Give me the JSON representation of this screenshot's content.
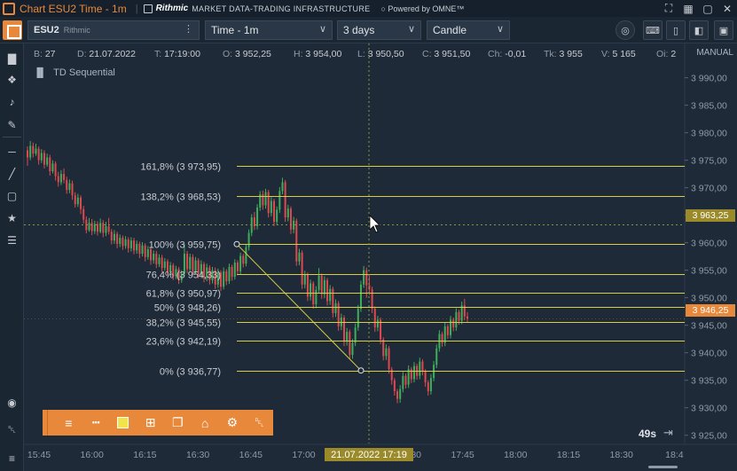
{
  "window": {
    "title": "Chart ESU2 Time - 1m",
    "brand": "Rithmic",
    "brand_sub": "MARKET DATA-TRADING INFRASTRUCTURE",
    "powered": "Powered by OMNE™",
    "icons": [
      "expand-icon",
      "grid-layout-icon",
      "maximize-icon",
      "close-icon"
    ]
  },
  "toolbar": {
    "symbol": "ESU2",
    "symbol_sub": "Rithmic",
    "timeframe": "Time - 1m",
    "range": "3 days",
    "chart_type": "Candle"
  },
  "info": {
    "b_label": "B:",
    "b_value": "27",
    "d_label": "D:",
    "d_value": "21.07.2022",
    "t_label": "T:",
    "t_value": "17:19:00",
    "o_label": "O:",
    "o_value": "3 952,25",
    "h_label": "H:",
    "h_value": "3 954,00",
    "l_label": "L:",
    "l_value": "3 950,50",
    "c_label": "C:",
    "c_value": "3 951,50",
    "ch_label": "Ch:",
    "ch_value": "-0,01",
    "tk_label": "Tk:",
    "tk_value": "3 955",
    "v_label": "V:",
    "v_value": "5 165",
    "oi_label": "Oi:",
    "oi_value": "2"
  },
  "indicator": "TD Sequential",
  "price_scale_mode": "MANUAL",
  "crosshair_time": "21.07.2022 17:19",
  "crosshair_price": "3 963,25",
  "last_price": "3 946,25",
  "countdown": "49s",
  "colors": {
    "up": "#3fae5a",
    "down": "#e0484f",
    "fib": "#d8cf46",
    "accent": "#e8883a",
    "last_price_tag": "#e8883a",
    "crosshair_tag": "#9a8a2a"
  },
  "chart_data": {
    "type": "candlestick",
    "x_ticks": [
      "15:45",
      "16:00",
      "16:15",
      "16:30",
      "16:45",
      "17:00",
      "17:15",
      "17:30",
      "17:45",
      "18:00",
      "18:15",
      "18:30",
      "18:4"
    ],
    "y_ticks": [
      "3 990,00",
      "3 985,00",
      "3 980,00",
      "3 975,00",
      "3 970,00",
      "3 965,00",
      "3 960,00",
      "3 955,00",
      "3 950,00",
      "3 945,00",
      "3 940,00",
      "3 935,00",
      "3 930,00",
      "3 925,00"
    ],
    "ylim": [
      3923.5,
      3993.0
    ],
    "fibonacci": [
      {
        "label": "161,8% (3 973,95)",
        "price": 3973.95
      },
      {
        "label": "138,2% (3 968,53)",
        "price": 3968.53
      },
      {
        "label": "100% (3 959,75)",
        "price": 3959.75
      },
      {
        "label": "76,4% (3 954,33)",
        "price": 3954.33
      },
      {
        "label": "61,8% (3 950,97)",
        "price": 3950.97
      },
      {
        "label": "50% (3 948,26)",
        "price": 3948.26
      },
      {
        "label": "38,2% (3 945,55)",
        "price": 3945.55
      },
      {
        "label": "23,6% (3 942,19)",
        "price": 3942.19
      },
      {
        "label": "0% (3 936,77)",
        "price": 3936.77
      }
    ],
    "candles": [
      [
        3976.8,
        3975.5,
        3977.5,
        3974.0
      ],
      [
        3975.5,
        3977.6,
        3978.5,
        3975.0
      ],
      [
        3977.6,
        3976.2,
        3978.2,
        3975.5
      ],
      [
        3976.2,
        3977.1,
        3978.0,
        3975.8
      ],
      [
        3977.1,
        3975.0,
        3977.5,
        3974.2
      ],
      [
        3975.0,
        3976.3,
        3977.0,
        3974.5
      ],
      [
        3976.3,
        3974.2,
        3976.8,
        3973.5
      ],
      [
        3974.2,
        3975.5,
        3976.2,
        3973.8
      ],
      [
        3975.5,
        3973.0,
        3976.0,
        3972.2
      ],
      [
        3973.0,
        3974.4,
        3975.0,
        3972.6
      ],
      [
        3974.4,
        3972.1,
        3974.8,
        3971.3
      ],
      [
        3972.1,
        3971.0,
        3972.9,
        3970.2
      ],
      [
        3971.0,
        3972.5,
        3973.2,
        3970.5
      ],
      [
        3972.5,
        3971.4,
        3973.5,
        3970.8
      ],
      [
        3971.4,
        3969.6,
        3972.0,
        3968.9
      ],
      [
        3969.6,
        3970.8,
        3971.5,
        3969.0
      ],
      [
        3970.8,
        3968.6,
        3971.3,
        3967.8
      ],
      [
        3968.6,
        3967.0,
        3969.2,
        3966.4
      ],
      [
        3967.0,
        3968.2,
        3968.9,
        3966.5
      ],
      [
        3968.2,
        3966.1,
        3968.6,
        3965.2
      ],
      [
        3966.1,
        3964.2,
        3966.7,
        3963.5
      ],
      [
        3964.2,
        3962.3,
        3964.8,
        3961.7
      ],
      [
        3962.3,
        3963.6,
        3964.5,
        3962.0
      ],
      [
        3963.6,
        3962.1,
        3964.3,
        3961.4
      ],
      [
        3962.1,
        3963.4,
        3964.0,
        3961.6
      ],
      [
        3963.4,
        3962.0,
        3963.9,
        3961.3
      ],
      [
        3962.0,
        3963.6,
        3964.4,
        3961.7
      ],
      [
        3963.6,
        3961.8,
        3964.1,
        3961.0
      ],
      [
        3961.8,
        3963.0,
        3963.8,
        3961.2
      ],
      [
        3963.0,
        3962.0,
        3964.5,
        3961.5
      ],
      [
        3962.0,
        3960.4,
        3962.5,
        3959.7
      ],
      [
        3960.4,
        3961.6,
        3962.3,
        3959.8
      ],
      [
        3961.6,
        3959.8,
        3962.0,
        3959.0
      ],
      [
        3959.8,
        3960.9,
        3961.5,
        3959.2
      ],
      [
        3960.9,
        3959.4,
        3961.3,
        3958.7
      ],
      [
        3959.4,
        3960.6,
        3961.2,
        3958.9
      ],
      [
        3960.6,
        3959.0,
        3961.0,
        3958.2
      ],
      [
        3959.0,
        3960.4,
        3961.0,
        3958.4
      ],
      [
        3960.4,
        3958.6,
        3960.9,
        3957.9
      ],
      [
        3958.6,
        3959.8,
        3960.4,
        3958.0
      ],
      [
        3959.8,
        3958.0,
        3960.2,
        3957.2
      ],
      [
        3958.0,
        3959.5,
        3960.1,
        3957.5
      ],
      [
        3959.5,
        3957.4,
        3959.9,
        3956.6
      ],
      [
        3957.4,
        3958.8,
        3959.4,
        3956.9
      ],
      [
        3958.8,
        3956.8,
        3959.2,
        3956.0
      ],
      [
        3956.8,
        3958.0,
        3958.6,
        3956.2
      ],
      [
        3958.0,
        3956.1,
        3958.5,
        3955.4
      ],
      [
        3956.1,
        3957.3,
        3957.9,
        3955.6
      ],
      [
        3957.3,
        3955.4,
        3957.8,
        3954.7
      ],
      [
        3955.4,
        3956.6,
        3957.2,
        3954.9
      ],
      [
        3956.6,
        3954.6,
        3957.0,
        3953.9
      ],
      [
        3954.6,
        3955.9,
        3956.5,
        3954.1
      ],
      [
        3955.9,
        3953.9,
        3956.3,
        3953.2
      ],
      [
        3953.9,
        3955.2,
        3955.8,
        3953.4
      ],
      [
        3955.2,
        3953.2,
        3955.6,
        3952.5
      ],
      [
        3953.2,
        3954.4,
        3955.0,
        3952.7
      ],
      [
        3954.4,
        3958.0,
        3959.8,
        3953.9
      ],
      [
        3958.0,
        3955.2,
        3958.5,
        3954.5
      ],
      [
        3955.2,
        3957.4,
        3958.0,
        3954.8
      ],
      [
        3957.4,
        3954.8,
        3957.9,
        3954.1
      ],
      [
        3954.8,
        3956.8,
        3957.4,
        3954.2
      ],
      [
        3956.8,
        3954.2,
        3957.2,
        3953.5
      ],
      [
        3954.2,
        3956.1,
        3956.8,
        3953.6
      ],
      [
        3956.1,
        3953.6,
        3956.5,
        3952.8
      ],
      [
        3953.6,
        3955.5,
        3956.2,
        3953.0
      ],
      [
        3955.5,
        3953.2,
        3955.9,
        3952.4
      ],
      [
        3953.2,
        3955.0,
        3955.6,
        3952.6
      ],
      [
        3955.0,
        3952.4,
        3955.5,
        3951.6
      ],
      [
        3952.4,
        3954.6,
        3955.3,
        3951.8
      ],
      [
        3954.6,
        3952.0,
        3955.0,
        3951.2
      ],
      [
        3952.0,
        3954.8,
        3955.5,
        3951.5
      ],
      [
        3954.8,
        3953.0,
        3955.2,
        3952.3
      ],
      [
        3953.0,
        3955.6,
        3956.2,
        3952.5
      ],
      [
        3955.6,
        3953.8,
        3956.0,
        3953.1
      ],
      [
        3953.8,
        3956.4,
        3957.0,
        3953.3
      ],
      [
        3956.4,
        3954.8,
        3956.8,
        3954.1
      ],
      [
        3954.8,
        3957.6,
        3958.2,
        3954.3
      ],
      [
        3957.6,
        3956.2,
        3958.0,
        3955.5
      ],
      [
        3956.2,
        3959.2,
        3959.8,
        3955.7
      ],
      [
        3959.2,
        3961.8,
        3962.4,
        3958.6
      ],
      [
        3961.8,
        3964.6,
        3965.2,
        3961.2
      ],
      [
        3964.6,
        3963.0,
        3965.6,
        3962.3
      ],
      [
        3963.0,
        3966.4,
        3967.0,
        3962.4
      ],
      [
        3966.4,
        3968.8,
        3969.4,
        3965.8
      ],
      [
        3968.8,
        3966.8,
        3969.5,
        3966.0
      ],
      [
        3966.8,
        3969.2,
        3969.8,
        3966.2
      ],
      [
        3969.2,
        3965.4,
        3969.6,
        3964.6
      ],
      [
        3965.4,
        3967.6,
        3968.3,
        3964.8
      ],
      [
        3967.6,
        3963.8,
        3968.0,
        3963.0
      ],
      [
        3963.8,
        3966.0,
        3966.6,
        3963.2
      ],
      [
        3966.0,
        3969.4,
        3970.1,
        3965.4
      ],
      [
        3969.4,
        3971.0,
        3971.8,
        3968.8
      ],
      [
        3971.0,
        3964.6,
        3971.4,
        3963.8
      ],
      [
        3964.6,
        3966.2,
        3966.9,
        3963.9
      ],
      [
        3966.2,
        3962.4,
        3966.6,
        3961.6
      ],
      [
        3962.4,
        3964.0,
        3964.7,
        3961.7
      ],
      [
        3964.0,
        3956.6,
        3964.4,
        3955.8
      ],
      [
        3956.6,
        3958.2,
        3958.9,
        3955.9
      ],
      [
        3958.2,
        3952.4,
        3958.6,
        3951.6
      ],
      [
        3952.4,
        3954.2,
        3954.9,
        3951.7
      ],
      [
        3954.2,
        3950.2,
        3954.6,
        3949.4
      ],
      [
        3950.2,
        3952.6,
        3953.3,
        3949.5
      ],
      [
        3952.6,
        3948.8,
        3953.0,
        3948.0
      ],
      [
        3948.8,
        3951.4,
        3952.1,
        3948.1
      ],
      [
        3951.4,
        3954.0,
        3955.4,
        3950.8
      ],
      [
        3954.0,
        3950.6,
        3954.4,
        3949.8
      ],
      [
        3950.6,
        3953.2,
        3953.9,
        3949.9
      ],
      [
        3953.2,
        3949.4,
        3953.6,
        3948.6
      ],
      [
        3949.4,
        3951.6,
        3952.3,
        3948.7
      ],
      [
        3951.6,
        3947.2,
        3952.0,
        3946.4
      ],
      [
        3947.2,
        3949.0,
        3949.7,
        3946.5
      ],
      [
        3949.0,
        3944.8,
        3949.4,
        3944.0
      ],
      [
        3944.8,
        3946.4,
        3947.1,
        3944.1
      ],
      [
        3946.4,
        3942.0,
        3946.8,
        3941.2
      ],
      [
        3942.0,
        3943.8,
        3944.5,
        3941.3
      ],
      [
        3943.8,
        3939.6,
        3944.2,
        3938.8
      ],
      [
        3939.6,
        3941.8,
        3942.5,
        3938.9
      ],
      [
        3941.8,
        3944.6,
        3945.3,
        3941.2
      ],
      [
        3944.6,
        3948.0,
        3948.7,
        3944.0
      ],
      [
        3948.0,
        3952.4,
        3953.1,
        3947.4
      ],
      [
        3952.4,
        3955.0,
        3955.8,
        3951.8
      ],
      [
        3955.0,
        3952.25,
        3955.5,
        3950.0
      ],
      [
        3952.25,
        3951.5,
        3954.0,
        3950.5
      ],
      [
        3951.5,
        3948.0,
        3952.0,
        3947.2
      ],
      [
        3948.0,
        3944.6,
        3948.4,
        3943.8
      ],
      [
        3944.6,
        3946.0,
        3946.7,
        3943.9
      ],
      [
        3946.0,
        3942.4,
        3946.4,
        3941.6
      ],
      [
        3942.4,
        3939.4,
        3942.8,
        3938.6
      ],
      [
        3939.4,
        3940.8,
        3941.5,
        3938.7
      ],
      [
        3940.8,
        3937.0,
        3941.2,
        3936.2
      ],
      [
        3937.0,
        3935.0,
        3937.4,
        3934.2
      ],
      [
        3935.0,
        3933.0,
        3935.4,
        3932.2
      ],
      [
        3933.0,
        3931.6,
        3933.4,
        3930.8
      ],
      [
        3931.6,
        3933.4,
        3934.1,
        3930.9
      ],
      [
        3933.4,
        3935.8,
        3936.5,
        3932.8
      ],
      [
        3935.8,
        3934.2,
        3936.2,
        3933.5
      ],
      [
        3934.2,
        3937.0,
        3937.7,
        3933.6
      ],
      [
        3937.0,
        3935.2,
        3937.4,
        3934.5
      ],
      [
        3935.2,
        3937.6,
        3938.3,
        3934.6
      ],
      [
        3937.6,
        3935.8,
        3938.0,
        3935.1
      ],
      [
        3935.8,
        3938.4,
        3939.1,
        3935.2
      ],
      [
        3938.4,
        3936.6,
        3938.8,
        3935.9
      ],
      [
        3936.6,
        3934.6,
        3937.0,
        3933.8
      ],
      [
        3934.6,
        3933.0,
        3935.0,
        3932.2
      ],
      [
        3933.0,
        3935.4,
        3936.1,
        3932.4
      ],
      [
        3935.4,
        3937.8,
        3938.5,
        3934.8
      ],
      [
        3937.8,
        3940.8,
        3941.5,
        3937.2
      ],
      [
        3940.8,
        3943.4,
        3944.1,
        3940.2
      ],
      [
        3943.4,
        3941.8,
        3943.8,
        3941.1
      ],
      [
        3941.8,
        3944.8,
        3945.5,
        3941.2
      ],
      [
        3944.8,
        3943.2,
        3945.2,
        3942.5
      ],
      [
        3943.2,
        3946.0,
        3946.7,
        3942.6
      ],
      [
        3946.0,
        3944.6,
        3946.4,
        3943.9
      ],
      [
        3944.6,
        3947.4,
        3948.1,
        3944.0
      ],
      [
        3947.4,
        3945.8,
        3947.8,
        3945.1
      ],
      [
        3945.8,
        3948.6,
        3949.3,
        3945.2
      ],
      [
        3948.6,
        3946.6,
        3949.8,
        3945.9
      ],
      [
        3946.6,
        3946.25,
        3947.4,
        3945.6
      ]
    ]
  }
}
